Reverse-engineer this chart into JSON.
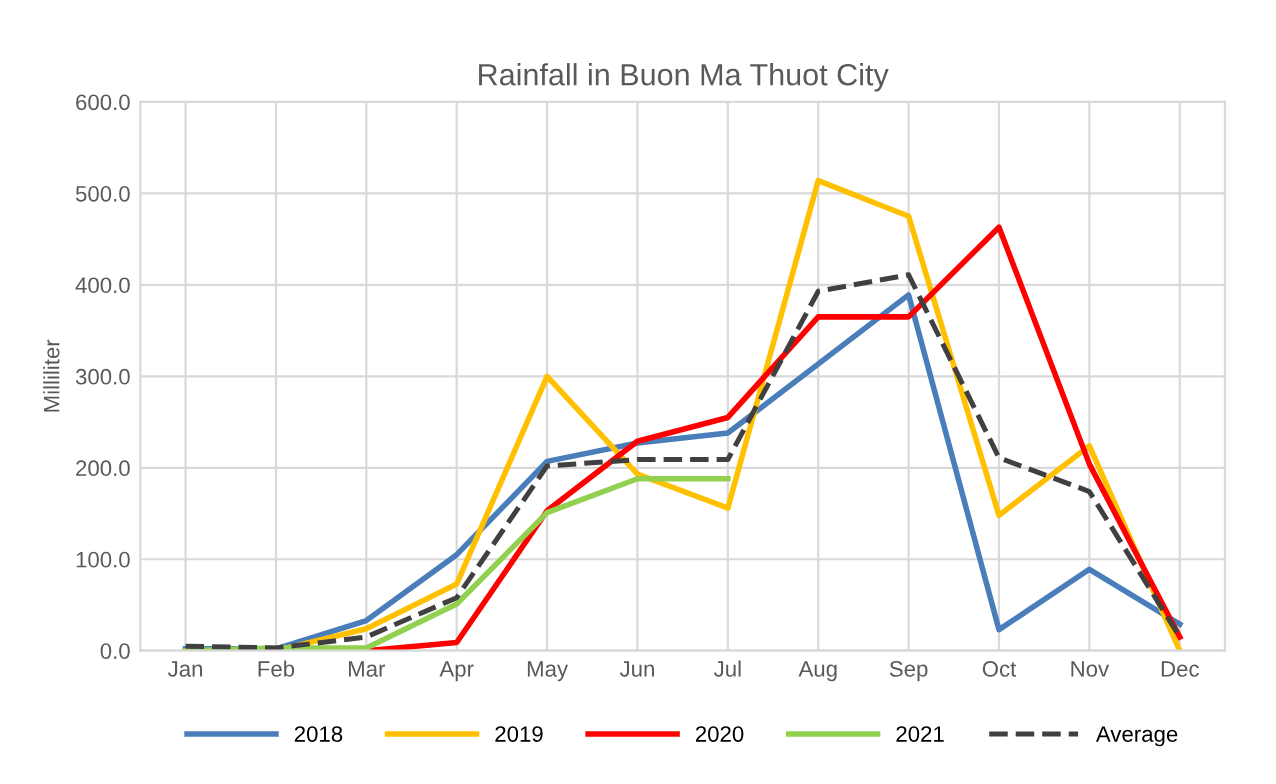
{
  "chart_data": {
    "type": "line",
    "title": "Rainfall in Buon Ma Thuot City",
    "ylabel": "Milliliter",
    "categories": [
      "Jan",
      "Feb",
      "Mar",
      "Apr",
      "May",
      "Jun",
      "Jul",
      "Aug",
      "Sep",
      "Oct",
      "Nov",
      "Dec"
    ],
    "series": [
      {
        "name": "2018",
        "color": "#4a7ebb",
        "values": [
          2,
          2,
          33,
          105,
          207,
          227,
          238,
          null,
          389,
          23,
          89,
          29
        ]
      },
      {
        "name": "2019",
        "color": "#ffc000",
        "values": [
          0,
          0,
          24,
          73,
          300,
          193,
          156,
          514,
          475,
          148,
          224,
          0
        ]
      },
      {
        "name": "2020",
        "color": "#ff0000",
        "values": [
          0,
          0,
          0,
          9,
          153,
          229,
          255,
          365,
          365,
          463,
          204,
          15
        ]
      },
      {
        "name": "2021",
        "color": "#92d050",
        "values": [
          0,
          3,
          3,
          51,
          151,
          188,
          188,
          null,
          null,
          null,
          null,
          null
        ]
      },
      {
        "name": "Average",
        "color": "#404040",
        "line_style": "dashed",
        "values": [
          5,
          3,
          15,
          58,
          202,
          209,
          209,
          393,
          411,
          211,
          174,
          15
        ]
      }
    ],
    "ylim": [
      0,
      600
    ],
    "yticks": [
      {
        "value": 0,
        "label": "0.0"
      },
      {
        "value": 100,
        "label": "100.0"
      },
      {
        "value": 200,
        "label": "200.0"
      },
      {
        "value": 300,
        "label": "300.0"
      },
      {
        "value": 400,
        "label": "400.0"
      },
      {
        "value": 500,
        "label": "500.0"
      },
      {
        "value": 600,
        "label": "600.0"
      }
    ],
    "grid": true,
    "legend": "bottom"
  }
}
